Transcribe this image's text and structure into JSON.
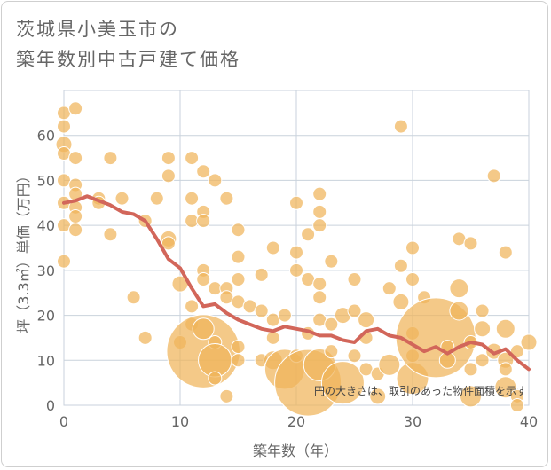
{
  "header": {
    "title_line1": "茨城県小美玉市の",
    "title_line2": "築年数別中古戸建て価格"
  },
  "colors": {
    "bubble_fill": "#f0b45a",
    "bubble_stroke": "#ffffff",
    "line": "#d2665a",
    "grid": "#c9d2dc",
    "axis_text": "#666666",
    "background": "#ffffff"
  },
  "chart_data": {
    "type": "scatter",
    "title": "茨城県小美玉市の築年数別中古戸建て価格",
    "xlabel": "築年数（年）",
    "ylabel": "坪（3.3㎡）単価（万円）",
    "xlim": [
      0,
      40
    ],
    "ylim": [
      0,
      70
    ],
    "xticks": [
      0,
      10,
      20,
      30,
      40
    ],
    "yticks": [
      0,
      10,
      20,
      30,
      40,
      50,
      60
    ],
    "grid": true,
    "note": "円の大きさは、取引のあった物件面積を示す",
    "series": [
      {
        "kind": "bubbles",
        "points": [
          {
            "x": 0,
            "y": 65,
            "s": 1
          },
          {
            "x": 1,
            "y": 66,
            "s": 1
          },
          {
            "x": 0,
            "y": 62,
            "s": 1
          },
          {
            "x": 0,
            "y": 58,
            "s": 1.2
          },
          {
            "x": 0,
            "y": 56,
            "s": 1
          },
          {
            "x": 1,
            "y": 55,
            "s": 1
          },
          {
            "x": 4,
            "y": 55,
            "s": 1
          },
          {
            "x": 0,
            "y": 50,
            "s": 1
          },
          {
            "x": 1,
            "y": 49,
            "s": 1
          },
          {
            "x": 1,
            "y": 47,
            "s": 1
          },
          {
            "x": 0,
            "y": 45,
            "s": 1
          },
          {
            "x": 1,
            "y": 44,
            "s": 1
          },
          {
            "x": 1,
            "y": 42,
            "s": 1
          },
          {
            "x": 0,
            "y": 40,
            "s": 1
          },
          {
            "x": 1,
            "y": 39,
            "s": 1
          },
          {
            "x": 3,
            "y": 46,
            "s": 1
          },
          {
            "x": 3,
            "y": 45,
            "s": 1
          },
          {
            "x": 5,
            "y": 46,
            "s": 1
          },
          {
            "x": 4,
            "y": 38,
            "s": 1
          },
          {
            "x": 0,
            "y": 32,
            "s": 1
          },
          {
            "x": 7,
            "y": 41,
            "s": 1
          },
          {
            "x": 8,
            "y": 46,
            "s": 1
          },
          {
            "x": 9,
            "y": 55,
            "s": 1
          },
          {
            "x": 9,
            "y": 51,
            "s": 1
          },
          {
            "x": 9,
            "y": 37,
            "s": 1.2
          },
          {
            "x": 6,
            "y": 24,
            "s": 1
          },
          {
            "x": 7,
            "y": 15,
            "s": 1
          },
          {
            "x": 9,
            "y": 36,
            "s": 1
          },
          {
            "x": 11,
            "y": 55,
            "s": 1
          },
          {
            "x": 12,
            "y": 52,
            "s": 1
          },
          {
            "x": 13,
            "y": 50,
            "s": 1
          },
          {
            "x": 11,
            "y": 46,
            "s": 1
          },
          {
            "x": 14,
            "y": 46,
            "s": 1
          },
          {
            "x": 12,
            "y": 43,
            "s": 1
          },
          {
            "x": 11,
            "y": 41,
            "s": 1
          },
          {
            "x": 12,
            "y": 41,
            "s": 1
          },
          {
            "x": 15,
            "y": 39,
            "s": 1
          },
          {
            "x": 15,
            "y": 33,
            "s": 1
          },
          {
            "x": 10,
            "y": 27,
            "s": 1.2
          },
          {
            "x": 12,
            "y": 30,
            "s": 1
          },
          {
            "x": 12,
            "y": 28,
            "s": 1
          },
          {
            "x": 13,
            "y": 26,
            "s": 1
          },
          {
            "x": 11,
            "y": 22,
            "s": 1
          },
          {
            "x": 14,
            "y": 26,
            "s": 1
          },
          {
            "x": 15,
            "y": 28,
            "s": 1
          },
          {
            "x": 14,
            "y": 24,
            "s": 1
          },
          {
            "x": 15,
            "y": 23,
            "s": 1
          },
          {
            "x": 16,
            "y": 22,
            "s": 1
          },
          {
            "x": 17,
            "y": 29,
            "s": 1
          },
          {
            "x": 18,
            "y": 35,
            "s": 1
          },
          {
            "x": 17,
            "y": 21,
            "s": 1
          },
          {
            "x": 18,
            "y": 19,
            "s": 1
          },
          {
            "x": 10,
            "y": 14,
            "s": 1
          },
          {
            "x": 11,
            "y": 18,
            "s": 1
          },
          {
            "x": 12,
            "y": 12,
            "s": 5.5
          },
          {
            "x": 12,
            "y": 17,
            "s": 1.6
          },
          {
            "x": 13,
            "y": 14,
            "s": 1
          },
          {
            "x": 13,
            "y": 10,
            "s": 2.5
          },
          {
            "x": 13,
            "y": 6,
            "s": 1
          },
          {
            "x": 14,
            "y": 2,
            "s": 1
          },
          {
            "x": 15,
            "y": 10,
            "s": 1
          },
          {
            "x": 15,
            "y": 13,
            "s": 1
          },
          {
            "x": 17,
            "y": 10,
            "s": 1
          },
          {
            "x": 18,
            "y": 10,
            "s": 1.4
          },
          {
            "x": 19,
            "y": 8,
            "s": 3
          },
          {
            "x": 18,
            "y": 15,
            "s": 1
          },
          {
            "x": 19,
            "y": 20,
            "s": 1
          },
          {
            "x": 20,
            "y": 45,
            "s": 1
          },
          {
            "x": 22,
            "y": 47,
            "s": 1
          },
          {
            "x": 22,
            "y": 43,
            "s": 1
          },
          {
            "x": 22,
            "y": 40,
            "s": 1
          },
          {
            "x": 21,
            "y": 38,
            "s": 1
          },
          {
            "x": 20,
            "y": 34,
            "s": 1
          },
          {
            "x": 20,
            "y": 30,
            "s": 1
          },
          {
            "x": 21,
            "y": 28,
            "s": 1
          },
          {
            "x": 22,
            "y": 27,
            "s": 1
          },
          {
            "x": 23,
            "y": 32,
            "s": 1
          },
          {
            "x": 22,
            "y": 24,
            "s": 1
          },
          {
            "x": 22,
            "y": 19,
            "s": 1
          },
          {
            "x": 23,
            "y": 18,
            "s": 1
          },
          {
            "x": 21,
            "y": 16,
            "s": 1
          },
          {
            "x": 20,
            "y": 11,
            "s": 1
          },
          {
            "x": 21,
            "y": 5,
            "s": 5
          },
          {
            "x": 22,
            "y": 9,
            "s": 2.4
          },
          {
            "x": 23,
            "y": 12,
            "s": 1
          },
          {
            "x": 24,
            "y": 5,
            "s": 3.2
          },
          {
            "x": 24,
            "y": 20,
            "s": 1.2
          },
          {
            "x": 25,
            "y": 21,
            "s": 1
          },
          {
            "x": 25,
            "y": 28,
            "s": 1
          },
          {
            "x": 26,
            "y": 19,
            "s": 1.2
          },
          {
            "x": 26,
            "y": 15,
            "s": 1
          },
          {
            "x": 25,
            "y": 11,
            "s": 1
          },
          {
            "x": 26,
            "y": 8,
            "s": 1
          },
          {
            "x": 27,
            "y": 7,
            "s": 1
          },
          {
            "x": 27,
            "y": 2,
            "s": 1.2
          },
          {
            "x": 28,
            "y": 9,
            "s": 1.6
          },
          {
            "x": 28,
            "y": 26,
            "s": 1
          },
          {
            "x": 29,
            "y": 31,
            "s": 1
          },
          {
            "x": 29,
            "y": 62,
            "s": 1
          },
          {
            "x": 30,
            "y": 35,
            "s": 1
          },
          {
            "x": 30,
            "y": 28,
            "s": 1
          },
          {
            "x": 29,
            "y": 23,
            "s": 1.2
          },
          {
            "x": 30,
            "y": 16,
            "s": 1
          },
          {
            "x": 30,
            "y": 11,
            "s": 1
          },
          {
            "x": 30,
            "y": 6,
            "s": 2.4
          },
          {
            "x": 31,
            "y": 24,
            "s": 1
          },
          {
            "x": 32,
            "y": 15,
            "s": 6
          },
          {
            "x": 33,
            "y": 13,
            "s": 1
          },
          {
            "x": 33,
            "y": 10,
            "s": 1.2
          },
          {
            "x": 34,
            "y": 26,
            "s": 1.4
          },
          {
            "x": 34,
            "y": 21,
            "s": 1.4
          },
          {
            "x": 34,
            "y": 37,
            "s": 1
          },
          {
            "x": 35,
            "y": 36,
            "s": 1
          },
          {
            "x": 35,
            "y": 14,
            "s": 1
          },
          {
            "x": 35,
            "y": 8,
            "s": 1
          },
          {
            "x": 35,
            "y": 2,
            "s": 1.6
          },
          {
            "x": 36,
            "y": 21,
            "s": 1
          },
          {
            "x": 36,
            "y": 17,
            "s": 1.2
          },
          {
            "x": 36,
            "y": 10,
            "s": 1
          },
          {
            "x": 37,
            "y": 51,
            "s": 1
          },
          {
            "x": 37,
            "y": 12,
            "s": 1.2
          },
          {
            "x": 38,
            "y": 34,
            "s": 1
          },
          {
            "x": 38,
            "y": 17,
            "s": 1.4
          },
          {
            "x": 38,
            "y": 10,
            "s": 1.2
          },
          {
            "x": 38,
            "y": 4,
            "s": 1.6
          },
          {
            "x": 38,
            "y": 8,
            "s": 1
          },
          {
            "x": 39,
            "y": 12,
            "s": 1
          },
          {
            "x": 39,
            "y": 2,
            "s": 1
          },
          {
            "x": 39,
            "y": 0,
            "s": 1
          },
          {
            "x": 40,
            "y": 14,
            "s": 1.2
          }
        ]
      },
      {
        "kind": "line",
        "x": [
          0,
          1,
          2,
          3,
          4,
          5,
          6,
          7,
          8,
          9,
          10,
          11,
          12,
          13,
          14,
          15,
          16,
          17,
          18,
          19,
          20,
          21,
          22,
          23,
          24,
          25,
          26,
          27,
          28,
          29,
          30,
          31,
          32,
          33,
          34,
          35,
          36,
          37,
          38,
          39,
          40
        ],
        "y": [
          45,
          45.5,
          46.5,
          45.5,
          44.5,
          43,
          42.5,
          41,
          37,
          32.5,
          30.5,
          26,
          22,
          22.5,
          20.5,
          19,
          18,
          17,
          16.5,
          17.5,
          17,
          16.5,
          15.5,
          15.5,
          14.5,
          14,
          16.5,
          17,
          15.5,
          15,
          13.5,
          12,
          13,
          11.5,
          13,
          14,
          13.5,
          11.5,
          12.5,
          10,
          8
        ]
      }
    ]
  }
}
